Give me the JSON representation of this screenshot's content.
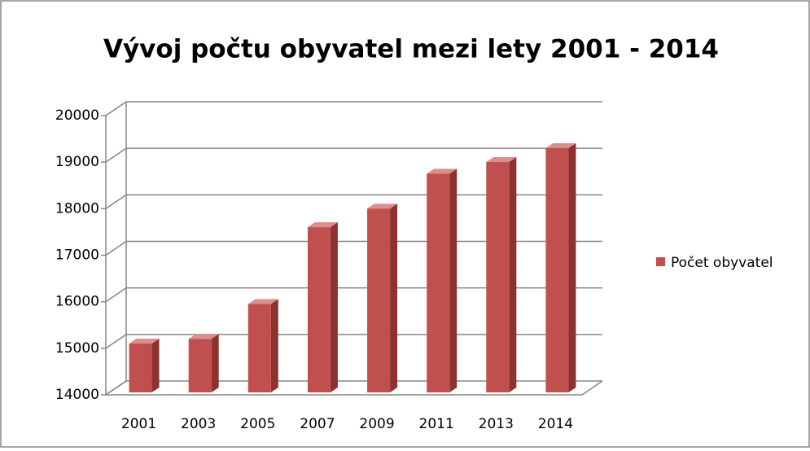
{
  "chart_data": {
    "type": "bar3d",
    "title": "Vývoj počtu obyvatel mezi lety 2001 - 2014",
    "categories": [
      "2001",
      "2003",
      "2005",
      "2007",
      "2009",
      "2011",
      "2013",
      "2014"
    ],
    "series": [
      {
        "name": "Počet obyvatel",
        "color": "#c0504d",
        "values": [
          15050,
          15150,
          15900,
          17550,
          17950,
          18700,
          18950,
          19250
        ]
      }
    ],
    "ylim": [
      14000,
      20000
    ],
    "yticks": [
      14000,
      15000,
      16000,
      17000,
      18000,
      19000,
      20000
    ],
    "grid": true,
    "legend": "right"
  }
}
